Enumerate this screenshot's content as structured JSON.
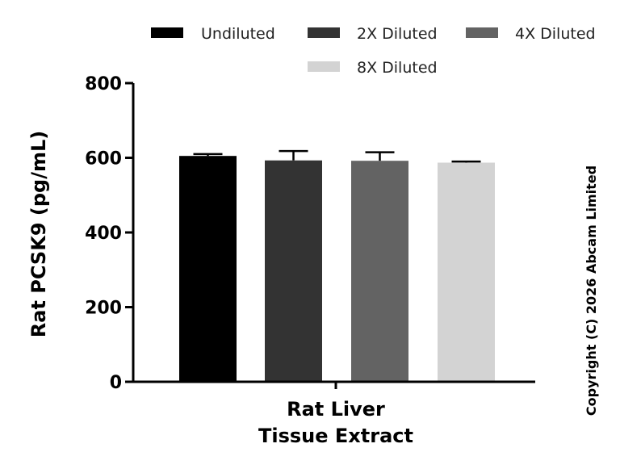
{
  "chart_data": {
    "type": "bar",
    "ylabel": "Rat PCSK9 (pg/mL)",
    "xlabel_lines": [
      "Rat Liver",
      "Tissue Extract"
    ],
    "ylim": [
      0,
      800
    ],
    "yticks": [
      "0",
      "200",
      "400",
      "600",
      "800"
    ],
    "legend_placement": "top",
    "series": [
      {
        "name": "Undiluted",
        "value": 605,
        "error": 5,
        "color": "#000000"
      },
      {
        "name": "2X Diluted",
        "value": 593,
        "error": 25,
        "color": "#333333"
      },
      {
        "name": "4X Diluted",
        "value": 592,
        "error": 23,
        "color": "#636363"
      },
      {
        "name": "8X Diluted",
        "value": 587,
        "error": 3,
        "color": "#d3d3d3"
      }
    ]
  },
  "copyright": "Copyright (C) 2026 Abcam Limited"
}
